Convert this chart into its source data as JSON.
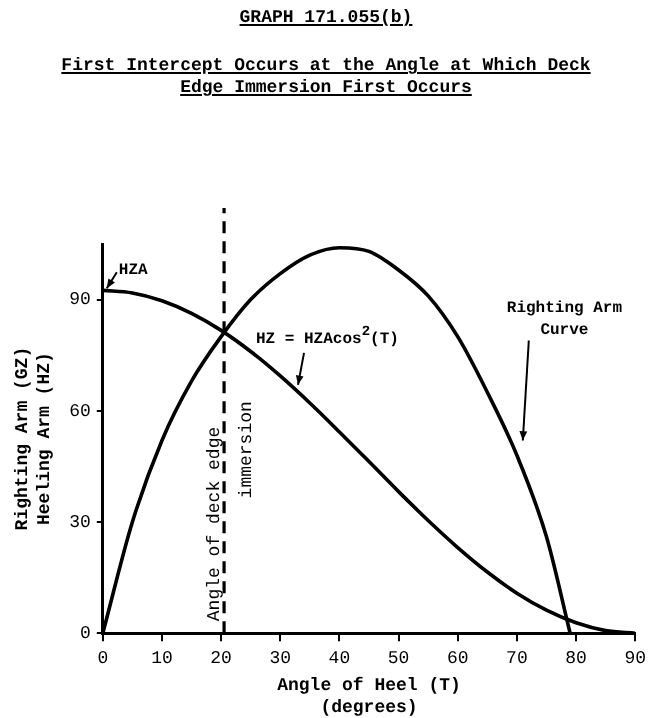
{
  "chart_data": {
    "type": "line",
    "title": "GRAPH 171.055(b)",
    "subtitle": "First Intercept Occurs at the Angle at Which Deck\nEdge Immersion First Occurs",
    "xlabel": "Angle of Heel (T)\n(degrees)",
    "ylabel": "Righting Arm (GZ)\nHeeling Arm (HZ)",
    "series": [
      {
        "color": "#000000",
        "x": [
          0,
          5,
          10,
          15,
          20,
          25,
          30,
          35,
          40,
          45,
          50,
          55,
          60,
          65,
          70,
          75,
          79
        ],
        "values": [
          0,
          30,
          52,
          68,
          80,
          90,
          97,
          102,
          104,
          103,
          98,
          91,
          80,
          65,
          48,
          26,
          0
        ]
      },
      {
        "color": "#000000",
        "x": [
          0,
          5,
          10,
          15,
          20,
          25,
          30,
          35,
          40,
          45,
          50,
          55,
          60,
          65,
          70,
          75,
          80,
          85,
          90
        ],
        "values": [
          92.5,
          91.8,
          89.7,
          86.3,
          81.7,
          76,
          69.4,
          62.1,
          54.3,
          46.3,
          38.2,
          30.4,
          23.1,
          16.5,
          10.8,
          6.2,
          2.8,
          0.7,
          0
        ]
      }
    ],
    "xlim": [
      0,
      90
    ],
    "xticks": [
      0,
      10,
      20,
      30,
      40,
      50,
      60,
      70,
      80,
      90
    ],
    "ylim": [
      0,
      105
    ],
    "yticks": [
      0,
      30,
      60,
      90
    ],
    "grid": false,
    "legend": false,
    "marker": "none",
    "line_style": "solid",
    "ref_lines": [
      {
        "axis": "x",
        "value": 20.5,
        "label": "Angle of deck edge\nimmersion",
        "line_style": "dashed",
        "color": "#000000"
      }
    ],
    "annotations": [
      {
        "text": "HZA",
        "x": 0,
        "y": 92.5
      },
      {
        "text": "HZ = HZAcos$^{2}$(T)",
        "x": 33,
        "y": 67
      },
      {
        "text": "Righting Arm\nCurve",
        "x": 71,
        "y": 52
      }
    ]
  }
}
